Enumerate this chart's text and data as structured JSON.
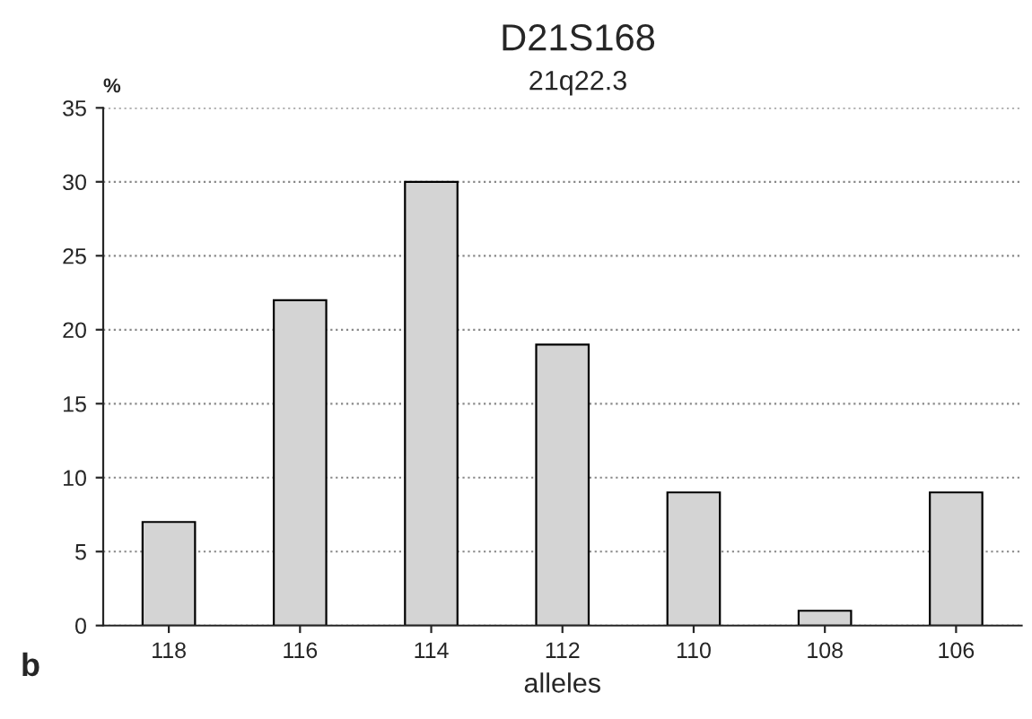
{
  "chart_data": {
    "type": "bar",
    "title": "D21S168",
    "subtitle": "21q22.3",
    "xlabel": "alleles",
    "ylabel": "%",
    "categories": [
      "118",
      "116",
      "114",
      "112",
      "110",
      "108",
      "106"
    ],
    "values": [
      7,
      22,
      30,
      19,
      9,
      1,
      9
    ],
    "color": "#d4d4d4",
    "ylim": [
      0,
      35
    ],
    "yticks": [
      0,
      5,
      10,
      15,
      20,
      25,
      30,
      35
    ],
    "grid": "y",
    "annotations": [
      "b"
    ]
  }
}
